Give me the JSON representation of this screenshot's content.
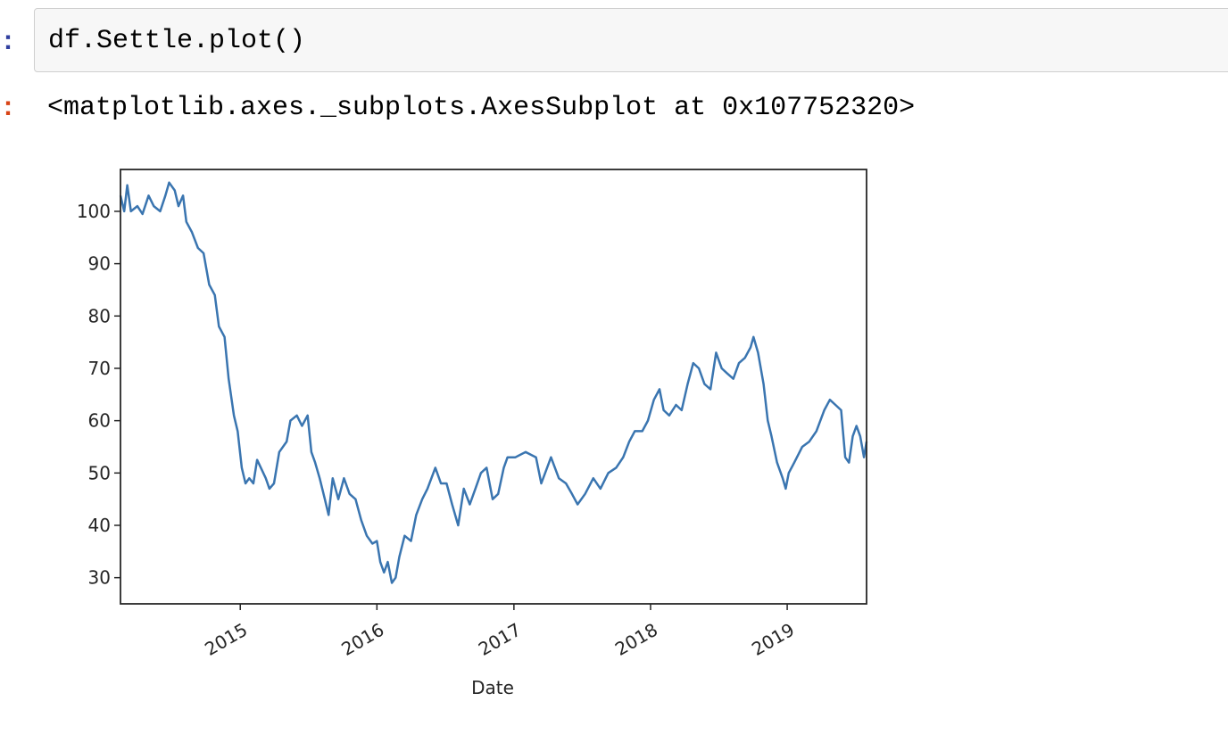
{
  "notebook": {
    "input_prompt": ":",
    "output_prompt": ":",
    "code": "df.Settle.plot()",
    "output_repr": "<matplotlib.axes._subplots.AxesSubplot at 0x107752320>"
  },
  "colors": {
    "line": "#3a75b0",
    "axes": "#262626",
    "cell_background": "#f7f7f7",
    "cell_border": "#cfcfcf",
    "input_prompt": "#303f9f",
    "output_prompt": "#d84315"
  },
  "chart_data": {
    "type": "line",
    "title": "",
    "xlabel": "Date",
    "ylabel": "",
    "grid": false,
    "legend": "none",
    "xlim": [
      "2014-02-15",
      "2019-08-01"
    ],
    "ylim": [
      25,
      108
    ],
    "x_ticks": [
      {
        "label": "2015",
        "date": "2015-01-01"
      },
      {
        "label": "2016",
        "date": "2016-01-01"
      },
      {
        "label": "2017",
        "date": "2017-01-01"
      },
      {
        "label": "2018",
        "date": "2018-01-01"
      },
      {
        "label": "2019",
        "date": "2019-01-01"
      }
    ],
    "y_ticks": [
      30,
      40,
      50,
      60,
      70,
      80,
      90,
      100
    ],
    "series": [
      {
        "points": [
          [
            "2014-02-15",
            103
          ],
          [
            "2014-02-25",
            100
          ],
          [
            "2014-03-05",
            105
          ],
          [
            "2014-03-15",
            100
          ],
          [
            "2014-04-01",
            101
          ],
          [
            "2014-04-15",
            99.5
          ],
          [
            "2014-05-01",
            103
          ],
          [
            "2014-05-15",
            101
          ],
          [
            "2014-06-01",
            100
          ],
          [
            "2014-06-15",
            103
          ],
          [
            "2014-06-25",
            105.5
          ],
          [
            "2014-07-10",
            104
          ],
          [
            "2014-07-20",
            101
          ],
          [
            "2014-08-01",
            103
          ],
          [
            "2014-08-10",
            98
          ],
          [
            "2014-08-25",
            96
          ],
          [
            "2014-09-10",
            93
          ],
          [
            "2014-09-25",
            92
          ],
          [
            "2014-10-10",
            86
          ],
          [
            "2014-10-25",
            84
          ],
          [
            "2014-11-05",
            78
          ],
          [
            "2014-11-20",
            76
          ],
          [
            "2014-12-01",
            68
          ],
          [
            "2014-12-15",
            61
          ],
          [
            "2014-12-25",
            58
          ],
          [
            "2015-01-05",
            51
          ],
          [
            "2015-01-15",
            48
          ],
          [
            "2015-01-25",
            49
          ],
          [
            "2015-02-05",
            48
          ],
          [
            "2015-02-15",
            52.5
          ],
          [
            "2015-02-25",
            51
          ],
          [
            "2015-03-10",
            49
          ],
          [
            "2015-03-20",
            47
          ],
          [
            "2015-04-01",
            48
          ],
          [
            "2015-04-15",
            54
          ],
          [
            "2015-05-05",
            56
          ],
          [
            "2015-05-15",
            60
          ],
          [
            "2015-06-01",
            61
          ],
          [
            "2015-06-15",
            59
          ],
          [
            "2015-06-30",
            61
          ],
          [
            "2015-07-10",
            54
          ],
          [
            "2015-07-20",
            52
          ],
          [
            "2015-08-01",
            49
          ],
          [
            "2015-08-15",
            45
          ],
          [
            "2015-08-25",
            42
          ],
          [
            "2015-09-05",
            49
          ],
          [
            "2015-09-20",
            45
          ],
          [
            "2015-10-05",
            49
          ],
          [
            "2015-10-20",
            46
          ],
          [
            "2015-11-05",
            45
          ],
          [
            "2015-11-20",
            41
          ],
          [
            "2015-12-05",
            38
          ],
          [
            "2015-12-20",
            36.5
          ],
          [
            "2016-01-01",
            37
          ],
          [
            "2016-01-10",
            33
          ],
          [
            "2016-01-20",
            31
          ],
          [
            "2016-01-30",
            33
          ],
          [
            "2016-02-10",
            29
          ],
          [
            "2016-02-20",
            30
          ],
          [
            "2016-03-01",
            34
          ],
          [
            "2016-03-15",
            38
          ],
          [
            "2016-04-01",
            37
          ],
          [
            "2016-04-15",
            42
          ],
          [
            "2016-05-01",
            45
          ],
          [
            "2016-05-15",
            47
          ],
          [
            "2016-06-05",
            51
          ],
          [
            "2016-06-20",
            48
          ],
          [
            "2016-07-05",
            48
          ],
          [
            "2016-07-20",
            44
          ],
          [
            "2016-08-05",
            40
          ],
          [
            "2016-08-20",
            47
          ],
          [
            "2016-09-05",
            44
          ],
          [
            "2016-09-20",
            47
          ],
          [
            "2016-10-05",
            50
          ],
          [
            "2016-10-20",
            51
          ],
          [
            "2016-11-05",
            45
          ],
          [
            "2016-11-20",
            46
          ],
          [
            "2016-12-05",
            51
          ],
          [
            "2016-12-15",
            53
          ],
          [
            "2017-01-05",
            53
          ],
          [
            "2017-02-01",
            54
          ],
          [
            "2017-03-01",
            53
          ],
          [
            "2017-03-15",
            48
          ],
          [
            "2017-04-10",
            53
          ],
          [
            "2017-05-01",
            49
          ],
          [
            "2017-05-20",
            48
          ],
          [
            "2017-06-05",
            46
          ],
          [
            "2017-06-20",
            44
          ],
          [
            "2017-07-10",
            46
          ],
          [
            "2017-08-01",
            49
          ],
          [
            "2017-08-20",
            47
          ],
          [
            "2017-09-10",
            50
          ],
          [
            "2017-10-01",
            51
          ],
          [
            "2017-10-20",
            53
          ],
          [
            "2017-11-05",
            56
          ],
          [
            "2017-11-20",
            58
          ],
          [
            "2017-12-10",
            58
          ],
          [
            "2017-12-25",
            60
          ],
          [
            "2018-01-10",
            64
          ],
          [
            "2018-01-25",
            66
          ],
          [
            "2018-02-05",
            62
          ],
          [
            "2018-02-20",
            61
          ],
          [
            "2018-03-10",
            63
          ],
          [
            "2018-03-25",
            62
          ],
          [
            "2018-04-10",
            67
          ],
          [
            "2018-04-25",
            71
          ],
          [
            "2018-05-10",
            70
          ],
          [
            "2018-05-25",
            67
          ],
          [
            "2018-06-10",
            66
          ],
          [
            "2018-06-25",
            73
          ],
          [
            "2018-07-10",
            70
          ],
          [
            "2018-07-25",
            69
          ],
          [
            "2018-08-10",
            68
          ],
          [
            "2018-08-25",
            71
          ],
          [
            "2018-09-10",
            72
          ],
          [
            "2018-09-25",
            74
          ],
          [
            "2018-10-03",
            76
          ],
          [
            "2018-10-15",
            73
          ],
          [
            "2018-10-30",
            67
          ],
          [
            "2018-11-10",
            60
          ],
          [
            "2018-11-20",
            57
          ],
          [
            "2018-12-05",
            52
          ],
          [
            "2018-12-20",
            49
          ],
          [
            "2018-12-28",
            47
          ],
          [
            "2019-01-05",
            50
          ],
          [
            "2019-01-20",
            52
          ],
          [
            "2019-02-10",
            55
          ],
          [
            "2019-03-01",
            56
          ],
          [
            "2019-03-20",
            58
          ],
          [
            "2019-04-10",
            62
          ],
          [
            "2019-04-25",
            64
          ],
          [
            "2019-05-10",
            63
          ],
          [
            "2019-05-25",
            62
          ],
          [
            "2019-06-05",
            53
          ],
          [
            "2019-06-15",
            52
          ],
          [
            "2019-06-25",
            57
          ],
          [
            "2019-07-05",
            59
          ],
          [
            "2019-07-15",
            57
          ],
          [
            "2019-07-25",
            53
          ],
          [
            "2019-08-01",
            56
          ]
        ]
      }
    ]
  }
}
